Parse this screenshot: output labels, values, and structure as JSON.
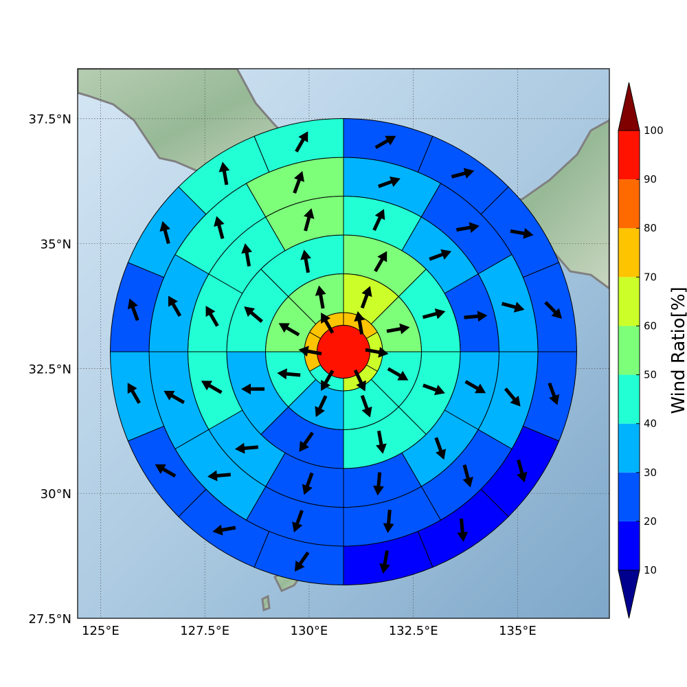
{
  "map": {
    "lon_range": [
      124.45,
      137.2
    ],
    "lat_range": [
      27.5,
      38.5
    ],
    "lon_ticks": [
      {
        "value": 125,
        "label": "125°E"
      },
      {
        "value": 127.5,
        "label": "127.5°E"
      },
      {
        "value": 130,
        "label": "130°E"
      },
      {
        "value": 132.5,
        "label": "132.5°E"
      },
      {
        "value": 135,
        "label": "135°E"
      }
    ],
    "lat_ticks": [
      {
        "value": 37.5,
        "label": "37.5°N"
      },
      {
        "value": 35,
        "label": "35°N"
      },
      {
        "value": 32.5,
        "label": "32.5°N"
      },
      {
        "value": 30,
        "label": "30°N"
      },
      {
        "value": 27.5,
        "label": "27.5°N"
      }
    ],
    "gridlines": true,
    "background": "shaded relief",
    "coastline_color": "#808080",
    "center": {
      "lon": 130.8,
      "lat": 33.05
    },
    "center_cell_ratio": 95,
    "rings": 6,
    "sectors_per_ring": [
      0,
      6,
      8,
      8,
      12,
      12,
      16
    ]
  },
  "wind_cells": [
    {
      "ring": 1,
      "cells": [
        {
          "ratio": 70,
          "dir": 350
        },
        {
          "ratio": 62,
          "dir": 100
        },
        {
          "ratio": 65,
          "dir": 155
        },
        {
          "ratio": 42,
          "dir": 210
        },
        {
          "ratio": 72,
          "dir": 280
        },
        {
          "ratio": 72,
          "dir": 330
        }
      ]
    },
    {
      "ring": 2,
      "cells": [
        {
          "ratio": 62,
          "dir": 20
        },
        {
          "ratio": 55,
          "dir": 80
        },
        {
          "ratio": 42,
          "dir": 120
        },
        {
          "ratio": 42,
          "dir": 160
        },
        {
          "ratio": 35,
          "dir": 205
        },
        {
          "ratio": 48,
          "dir": 275
        },
        {
          "ratio": 55,
          "dir": 300
        },
        {
          "ratio": 52,
          "dir": 350
        }
      ]
    },
    {
      "ring": 3,
      "cells": [
        {
          "ratio": 55,
          "dir": 30
        },
        {
          "ratio": 45,
          "dir": 75
        },
        {
          "ratio": 40,
          "dir": 110
        },
        {
          "ratio": 42,
          "dir": 170
        },
        {
          "ratio": 25,
          "dir": 215
        },
        {
          "ratio": 38,
          "dir": 270
        },
        {
          "ratio": 42,
          "dir": 310
        },
        {
          "ratio": 45,
          "dir": 350
        }
      ]
    },
    {
      "ring": 4,
      "cells": [
        {
          "ratio": 45,
          "dir": 25
        },
        {
          "ratio": 32,
          "dir": 70
        },
        {
          "ratio": 22,
          "dir": 85
        },
        {
          "ratio": 32,
          "dir": 120
        },
        {
          "ratio": 35,
          "dir": 160
        },
        {
          "ratio": 22,
          "dir": 185
        },
        {
          "ratio": 25,
          "dir": 200
        },
        {
          "ratio": 32,
          "dir": 265
        },
        {
          "ratio": 40,
          "dir": 300
        },
        {
          "ratio": 40,
          "dir": 330
        },
        {
          "ratio": 45,
          "dir": 350
        },
        {
          "ratio": 52,
          "dir": 15
        }
      ]
    },
    {
      "ring": 5,
      "cells": [
        {
          "ratio": 35,
          "dir": 70
        },
        {
          "ratio": 22,
          "dir": 80
        },
        {
          "ratio": 32,
          "dir": 105
        },
        {
          "ratio": 35,
          "dir": 140
        },
        {
          "ratio": 22,
          "dir": 165
        },
        {
          "ratio": 22,
          "dir": 185
        },
        {
          "ratio": 22,
          "dir": 200
        },
        {
          "ratio": 35,
          "dir": 265
        },
        {
          "ratio": 38,
          "dir": 300
        },
        {
          "ratio": 32,
          "dir": 330
        },
        {
          "ratio": 42,
          "dir": 345
        },
        {
          "ratio": 52,
          "dir": 20
        }
      ]
    },
    {
      "ring": 6,
      "cells": [
        {
          "ratio": 22,
          "dir": 60
        },
        {
          "ratio": 22,
          "dir": 75
        },
        {
          "ratio": 22,
          "dir": 100
        },
        {
          "ratio": 22,
          "dir": 135
        },
        {
          "ratio": 22,
          "dir": 160
        },
        {
          "ratio": 18,
          "dir": 165
        },
        {
          "ratio": 15,
          "dir": 175
        },
        {
          "ratio": 18,
          "dir": 190
        },
        {
          "ratio": 22,
          "dir": 215
        },
        {
          "ratio": 22,
          "dir": 260
        },
        {
          "ratio": 25,
          "dir": 300
        },
        {
          "ratio": 32,
          "dir": 330
        },
        {
          "ratio": 25,
          "dir": 340
        },
        {
          "ratio": 38,
          "dir": 345
        },
        {
          "ratio": 48,
          "dir": 350
        },
        {
          "ratio": 42,
          "dir": 30
        }
      ]
    }
  ],
  "colorbar": {
    "label": "Wind Ratio[%]",
    "ticks": [
      "10",
      "20",
      "30",
      "40",
      "50",
      "60",
      "70",
      "80",
      "90",
      "100"
    ],
    "bins": [
      {
        "from": 10,
        "to": 20,
        "color": "#0000ff"
      },
      {
        "from": 20,
        "to": 30,
        "color": "#0055ff"
      },
      {
        "from": 30,
        "to": 40,
        "color": "#00b3ff"
      },
      {
        "from": 40,
        "to": 50,
        "color": "#23ffd4"
      },
      {
        "from": 50,
        "to": 60,
        "color": "#7dff7a"
      },
      {
        "from": 60,
        "to": 70,
        "color": "#ccff29"
      },
      {
        "from": 70,
        "to": 80,
        "color": "#ffc400"
      },
      {
        "from": 80,
        "to": 90,
        "color": "#ff6a00"
      },
      {
        "from": 90,
        "to": 100,
        "color": "#ff1300"
      }
    ],
    "under_color": "#00008f",
    "over_color": "#800000"
  }
}
